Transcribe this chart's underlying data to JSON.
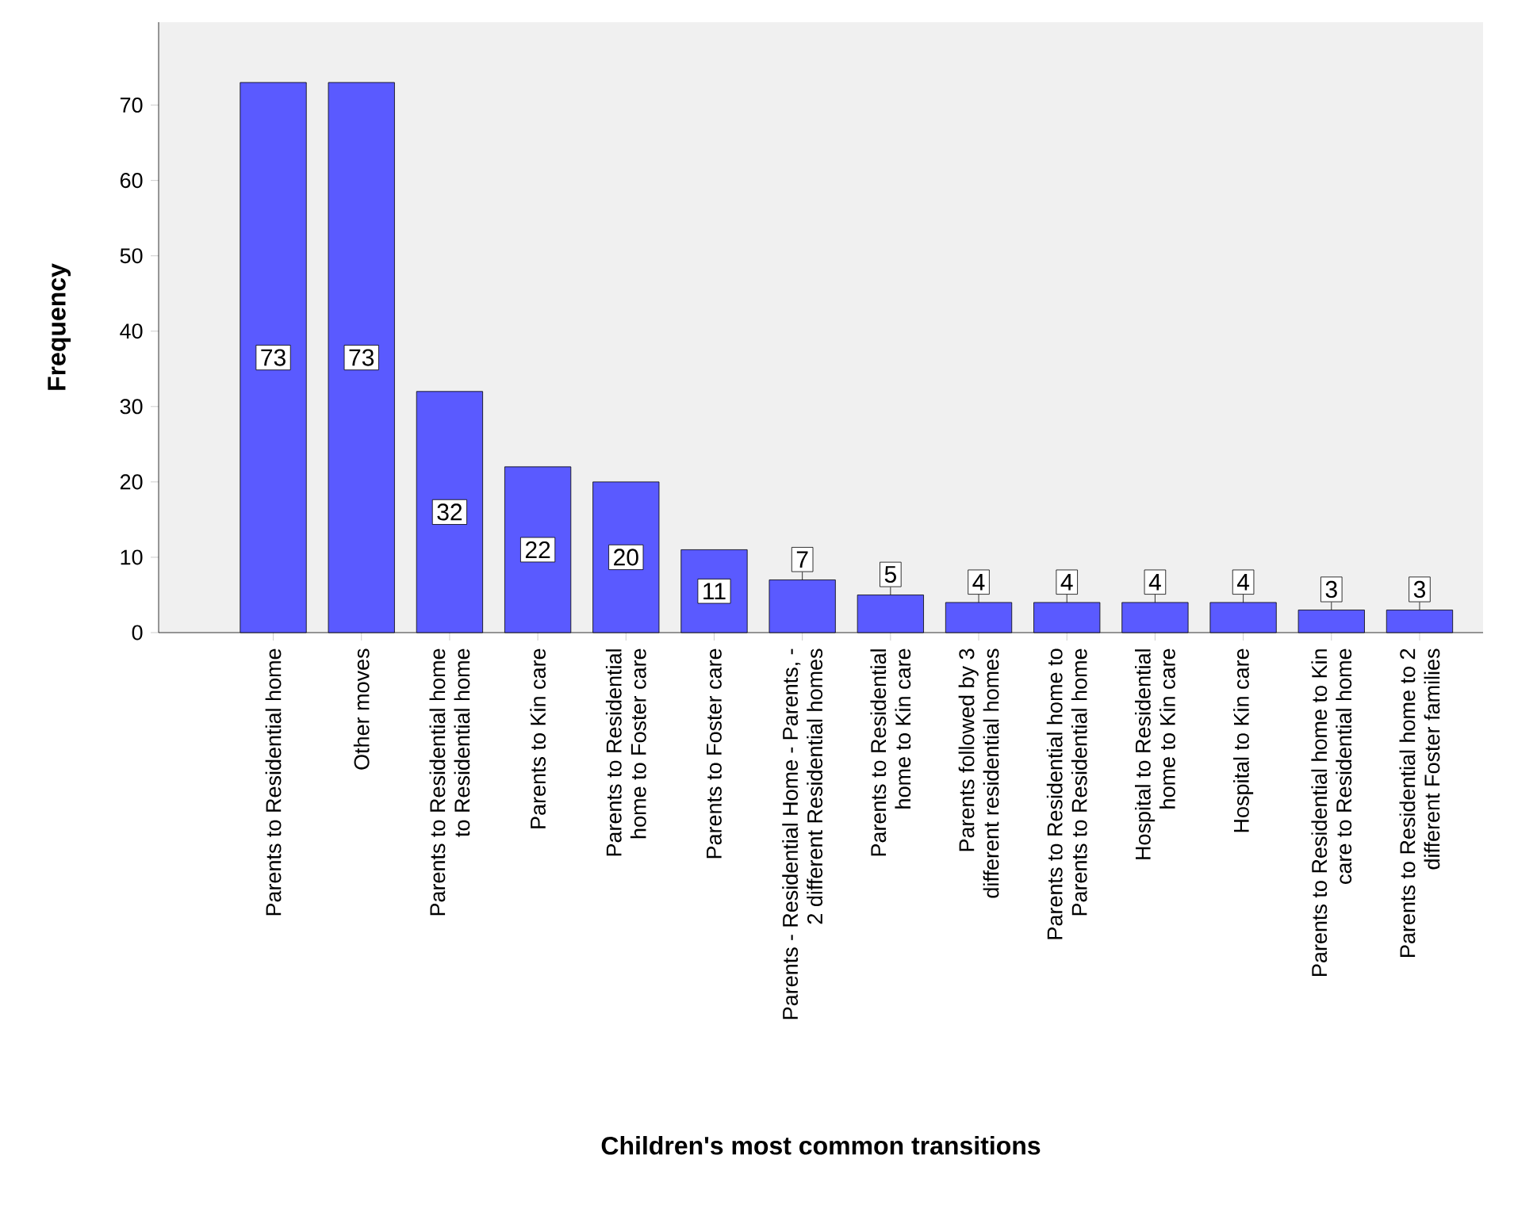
{
  "chart_data": {
    "type": "bar",
    "xlabel": "Children's most common transitions",
    "ylabel": "Frequency",
    "categories": [
      "Parents to Residential home",
      "Other moves",
      "Parents to Residential home to Residential home",
      "Parents to Kin care",
      "Parents to Residential home to Foster care",
      "Parents to Foster care",
      "Parents - Residential Home - Parents, - 2 different Residential homes",
      "Parents to Residential home to Kin care",
      "Parents followed by 3 different residential homes",
      "Parents to Residential home to Parents to Residential home",
      "Hospital to Residential home to Kin care",
      "Hospital to Kin care",
      "Parents to Residential home to Kin care to Residential home",
      "Parents to Residential home to 2 different Foster families"
    ],
    "values": [
      73,
      73,
      32,
      22,
      20,
      11,
      7,
      5,
      4,
      4,
      4,
      4,
      3,
      3
    ],
    "color": "#5a5aff",
    "ylim": [
      0,
      81
    ],
    "yticks": [
      0,
      10,
      20,
      30,
      40,
      50,
      60,
      70
    ],
    "data_labels": true,
    "grid": false
  }
}
